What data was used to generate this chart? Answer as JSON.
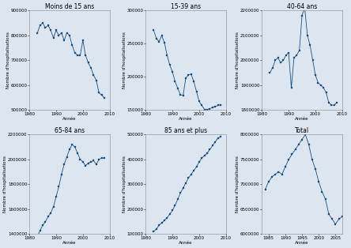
{
  "panels": [
    {
      "title": "Moins de 15 ans",
      "years": [
        1983,
        1984,
        1985,
        1986,
        1987,
        1988,
        1989,
        1990,
        1991,
        1992,
        1993,
        1994,
        1995,
        1996,
        1997,
        1998,
        1999,
        2000,
        2001,
        2002,
        2003,
        2004,
        2005,
        2006,
        2007,
        2008
      ],
      "values": [
        810000,
        840000,
        850000,
        830000,
        840000,
        820000,
        790000,
        820000,
        800000,
        810000,
        780000,
        810000,
        800000,
        760000,
        730000,
        720000,
        720000,
        780000,
        720000,
        690000,
        670000,
        640000,
        620000,
        570000,
        560000,
        550000
      ],
      "ylim": [
        500000,
        900000
      ],
      "yticks": [
        500000,
        600000,
        700000,
        800000,
        900000
      ],
      "ylabels": [
        "500000",
        "600000",
        "700000",
        "800000",
        "900000"
      ],
      "xlim": [
        1980,
        2010
      ],
      "xticks": [
        1980,
        1990,
        2000,
        2010
      ]
    },
    {
      "title": "15-39 ans",
      "years": [
        1983,
        1984,
        1985,
        1986,
        1987,
        1988,
        1989,
        1990,
        1991,
        1992,
        1993,
        1994,
        1995,
        1996,
        1997,
        1998,
        1999,
        2000,
        2001,
        2002,
        2003,
        2004,
        2005,
        2006,
        2007,
        2008
      ],
      "values": [
        270000,
        258000,
        253000,
        262000,
        252000,
        233000,
        218000,
        208000,
        193000,
        183000,
        173000,
        172000,
        198000,
        203000,
        204000,
        193000,
        178000,
        163000,
        157000,
        151000,
        151000,
        152000,
        154000,
        155000,
        157000,
        158000
      ],
      "ylim": [
        150000,
        300000
      ],
      "yticks": [
        150000,
        200000,
        250000,
        300000
      ],
      "ylabels": [
        "150000",
        "200000",
        "250000",
        "300000"
      ],
      "xlim": [
        1980,
        2010
      ],
      "xticks": [
        1980,
        1990,
        2000,
        2010
      ]
    },
    {
      "title": "40-64 ans",
      "years": [
        1983,
        1984,
        1985,
        1986,
        1987,
        1988,
        1989,
        1990,
        1991,
        1992,
        1993,
        1994,
        1995,
        1996,
        1997,
        1998,
        1999,
        2000,
        2001,
        2002,
        2003,
        2004,
        2005,
        2006,
        2007,
        2008
      ],
      "values": [
        1950000,
        1970000,
        2000000,
        2010000,
        1990000,
        2000000,
        2020000,
        2030000,
        1890000,
        2010000,
        2020000,
        2040000,
        2180000,
        2210000,
        2100000,
        2060000,
        2000000,
        1940000,
        1910000,
        1900000,
        1890000,
        1870000,
        1830000,
        1820000,
        1820000,
        1830000
      ],
      "ylim": [
        1800000,
        2200000
      ],
      "yticks": [
        1800000,
        1900000,
        2000000,
        2100000,
        2200000
      ],
      "ylabels": [
        "1800000",
        "1900000",
        "2000000",
        "2100000",
        "2200000"
      ],
      "xlim": [
        1980,
        2010
      ],
      "xticks": [
        1980,
        1990,
        2000,
        2010
      ]
    },
    {
      "title": "65-84 ans",
      "years": [
        1983,
        1984,
        1985,
        1986,
        1987,
        1988,
        1989,
        1990,
        1991,
        1992,
        1993,
        1994,
        1995,
        1996,
        1997,
        1998,
        1999,
        2000,
        2001,
        2002,
        2003,
        2004,
        2005,
        2006,
        2007,
        2008
      ],
      "values": [
        1380000,
        1430000,
        1470000,
        1500000,
        1540000,
        1570000,
        1620000,
        1700000,
        1780000,
        1880000,
        1960000,
        2020000,
        2080000,
        2120000,
        2100000,
        2050000,
        2000000,
        1980000,
        1950000,
        1970000,
        1980000,
        1990000,
        1960000,
        2000000,
        2010000,
        2010000
      ],
      "ylim": [
        1400000,
        2200000
      ],
      "yticks": [
        1400000,
        1600000,
        1800000,
        2000000,
        2200000
      ],
      "ylabels": [
        "1400000",
        "1600000",
        "1800000",
        "2000000",
        "2200000"
      ],
      "xlim": [
        1980,
        2010
      ],
      "xticks": [
        1980,
        1990,
        2000,
        2010
      ]
    },
    {
      "title": "85 ans et plus",
      "years": [
        1983,
        1984,
        1985,
        1986,
        1987,
        1988,
        1989,
        1990,
        1991,
        1992,
        1993,
        1994,
        1995,
        1996,
        1997,
        1998,
        1999,
        2000,
        2001,
        2002,
        2003,
        2004,
        2005,
        2006,
        2007,
        2008
      ],
      "values": [
        110000,
        120000,
        135000,
        145000,
        155000,
        165000,
        180000,
        195000,
        215000,
        240000,
        265000,
        285000,
        305000,
        325000,
        340000,
        355000,
        370000,
        390000,
        405000,
        415000,
        425000,
        440000,
        455000,
        470000,
        485000,
        490000
      ],
      "ylim": [
        100000,
        500000
      ],
      "yticks": [
        100000,
        200000,
        300000,
        400000,
        500000
      ],
      "ylabels": [
        "100000",
        "200000",
        "300000",
        "400000",
        "500000"
      ],
      "xlim": [
        1980,
        2010
      ],
      "xticks": [
        1980,
        1990,
        2000,
        2010
      ]
    },
    {
      "title": "Total",
      "years": [
        1984,
        1985,
        1986,
        1987,
        1988,
        1989,
        1990,
        1991,
        1992,
        1993,
        1994,
        1995,
        1996,
        1997,
        1998,
        1999,
        2000,
        2001,
        2002,
        2003,
        2004,
        2005,
        2006,
        2007
      ],
      "values": [
        6900000,
        7050000,
        7150000,
        7200000,
        7250000,
        7200000,
        7350000,
        7500000,
        7600000,
        7700000,
        7800000,
        7900000,
        8000000,
        7800000,
        7500000,
        7300000,
        7050000,
        6850000,
        6700000,
        6400000,
        6300000,
        6200000,
        6300000,
        6350000
      ],
      "ylim": [
        6000000,
        8000000
      ],
      "yticks": [
        6000000,
        6500000,
        7000000,
        7500000,
        8000000
      ],
      "ylabels": [
        "6000000",
        "6500000",
        "7000000",
        "7500000",
        "8000000"
      ],
      "xlim": [
        1983,
        2007
      ],
      "xticks": [
        1985,
        1990,
        1995,
        2000,
        2005
      ]
    }
  ],
  "marker": "s",
  "markersize": 1.5,
  "linewidth": 0.6,
  "color": "#1f4e79",
  "xlabel": "Année",
  "ylabel": "Nombre d'hospitalisations",
  "bg_color": "#dce6f1",
  "fig_bg": "#dce6f1",
  "title_fontsize": 5.5,
  "label_fontsize": 4.0,
  "tick_fontsize": 4.0
}
